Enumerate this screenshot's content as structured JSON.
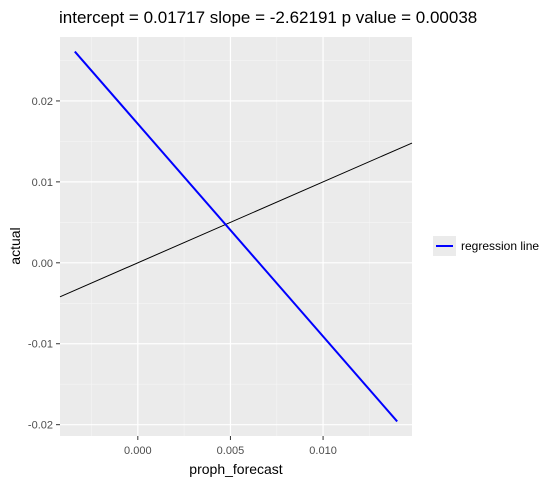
{
  "chart_data": {
    "type": "line",
    "title": "intercept = 0.01717 slope = -2.62191 p value = 0.00038",
    "xlabel": "proph_forecast",
    "ylabel": "actual",
    "xlim": [
      -0.0042,
      0.0148
    ],
    "ylim": [
      -0.0214,
      0.0279
    ],
    "x_ticks": [
      0.0,
      0.005,
      0.01
    ],
    "x_tick_labels": [
      "0.000",
      "0.005",
      "0.010"
    ],
    "y_ticks": [
      -0.02,
      -0.01,
      0.0,
      0.01,
      0.02
    ],
    "y_tick_labels": [
      "-0.02",
      "-0.01",
      "0.00",
      "0.01",
      "0.02"
    ],
    "grid": true,
    "legend_position": "right",
    "series": [
      {
        "name": "regression line",
        "color": "#0000ff",
        "x": [
          -0.0034,
          0.014
        ],
        "y": [
          0.0261,
          -0.0196
        ]
      }
    ],
    "reference_line": {
      "color": "#000000",
      "slope": 1,
      "intercept": 0
    }
  },
  "colors": {
    "panel_background": "#ebebeb",
    "grid_major": "#ffffff",
    "grid_minor": "#f5f5f5",
    "regression_line": "#0000ff",
    "reference_line": "#000000"
  }
}
